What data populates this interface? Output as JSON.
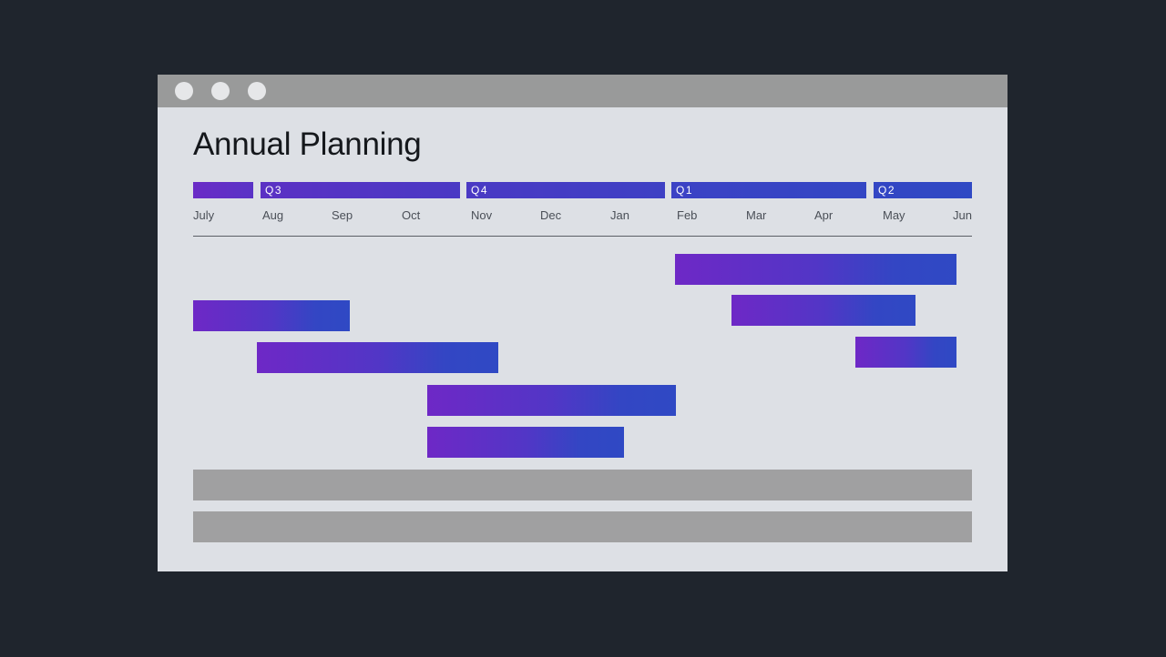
{
  "page": {
    "title": "Annual Planning"
  },
  "timeline": {
    "quarters": [
      {
        "label": ""
      },
      {
        "label": "Q3"
      },
      {
        "label": "Q4"
      },
      {
        "label": "Q1"
      },
      {
        "label": "Q2"
      }
    ],
    "months": [
      "July",
      "Aug",
      "Sep",
      "Oct",
      "Nov",
      "Dec",
      "Jan",
      "Feb",
      "Mar",
      "Apr",
      "May",
      "Jun"
    ]
  },
  "colors": {
    "background": "#1f252d",
    "window": "#dde0e5",
    "titlebar": "#999a9a",
    "bar_gradient_start": "#6e28c6",
    "bar_gradient_end": "#2f49c4",
    "placeholder_bar": "#a0a0a1"
  },
  "window_controls": [
    "window-dot",
    "window-dot",
    "window-dot"
  ]
}
